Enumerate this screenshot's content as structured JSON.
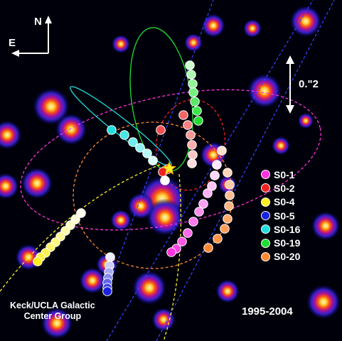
{
  "compass": {
    "north": "N",
    "east": "E"
  },
  "scale_bar": {
    "label": "0.\"2"
  },
  "legend": [
    {
      "label": "S0-1",
      "color": "#ff33dd"
    },
    {
      "label": "S0-2",
      "color": "#ee2222"
    },
    {
      "label": "S0-4",
      "color": "#ffee22"
    },
    {
      "label": "S0-5",
      "color": "#1a22dd"
    },
    {
      "label": "S0-16",
      "color": "#22dddd"
    },
    {
      "label": "S0-19",
      "color": "#22dd33"
    },
    {
      "label": "S0-20",
      "color": "#ff8833"
    }
  ],
  "credit": {
    "line1": "Keck/UCLA Galactic",
    "line2": "Center Group"
  },
  "date_range": "1995-2004"
}
